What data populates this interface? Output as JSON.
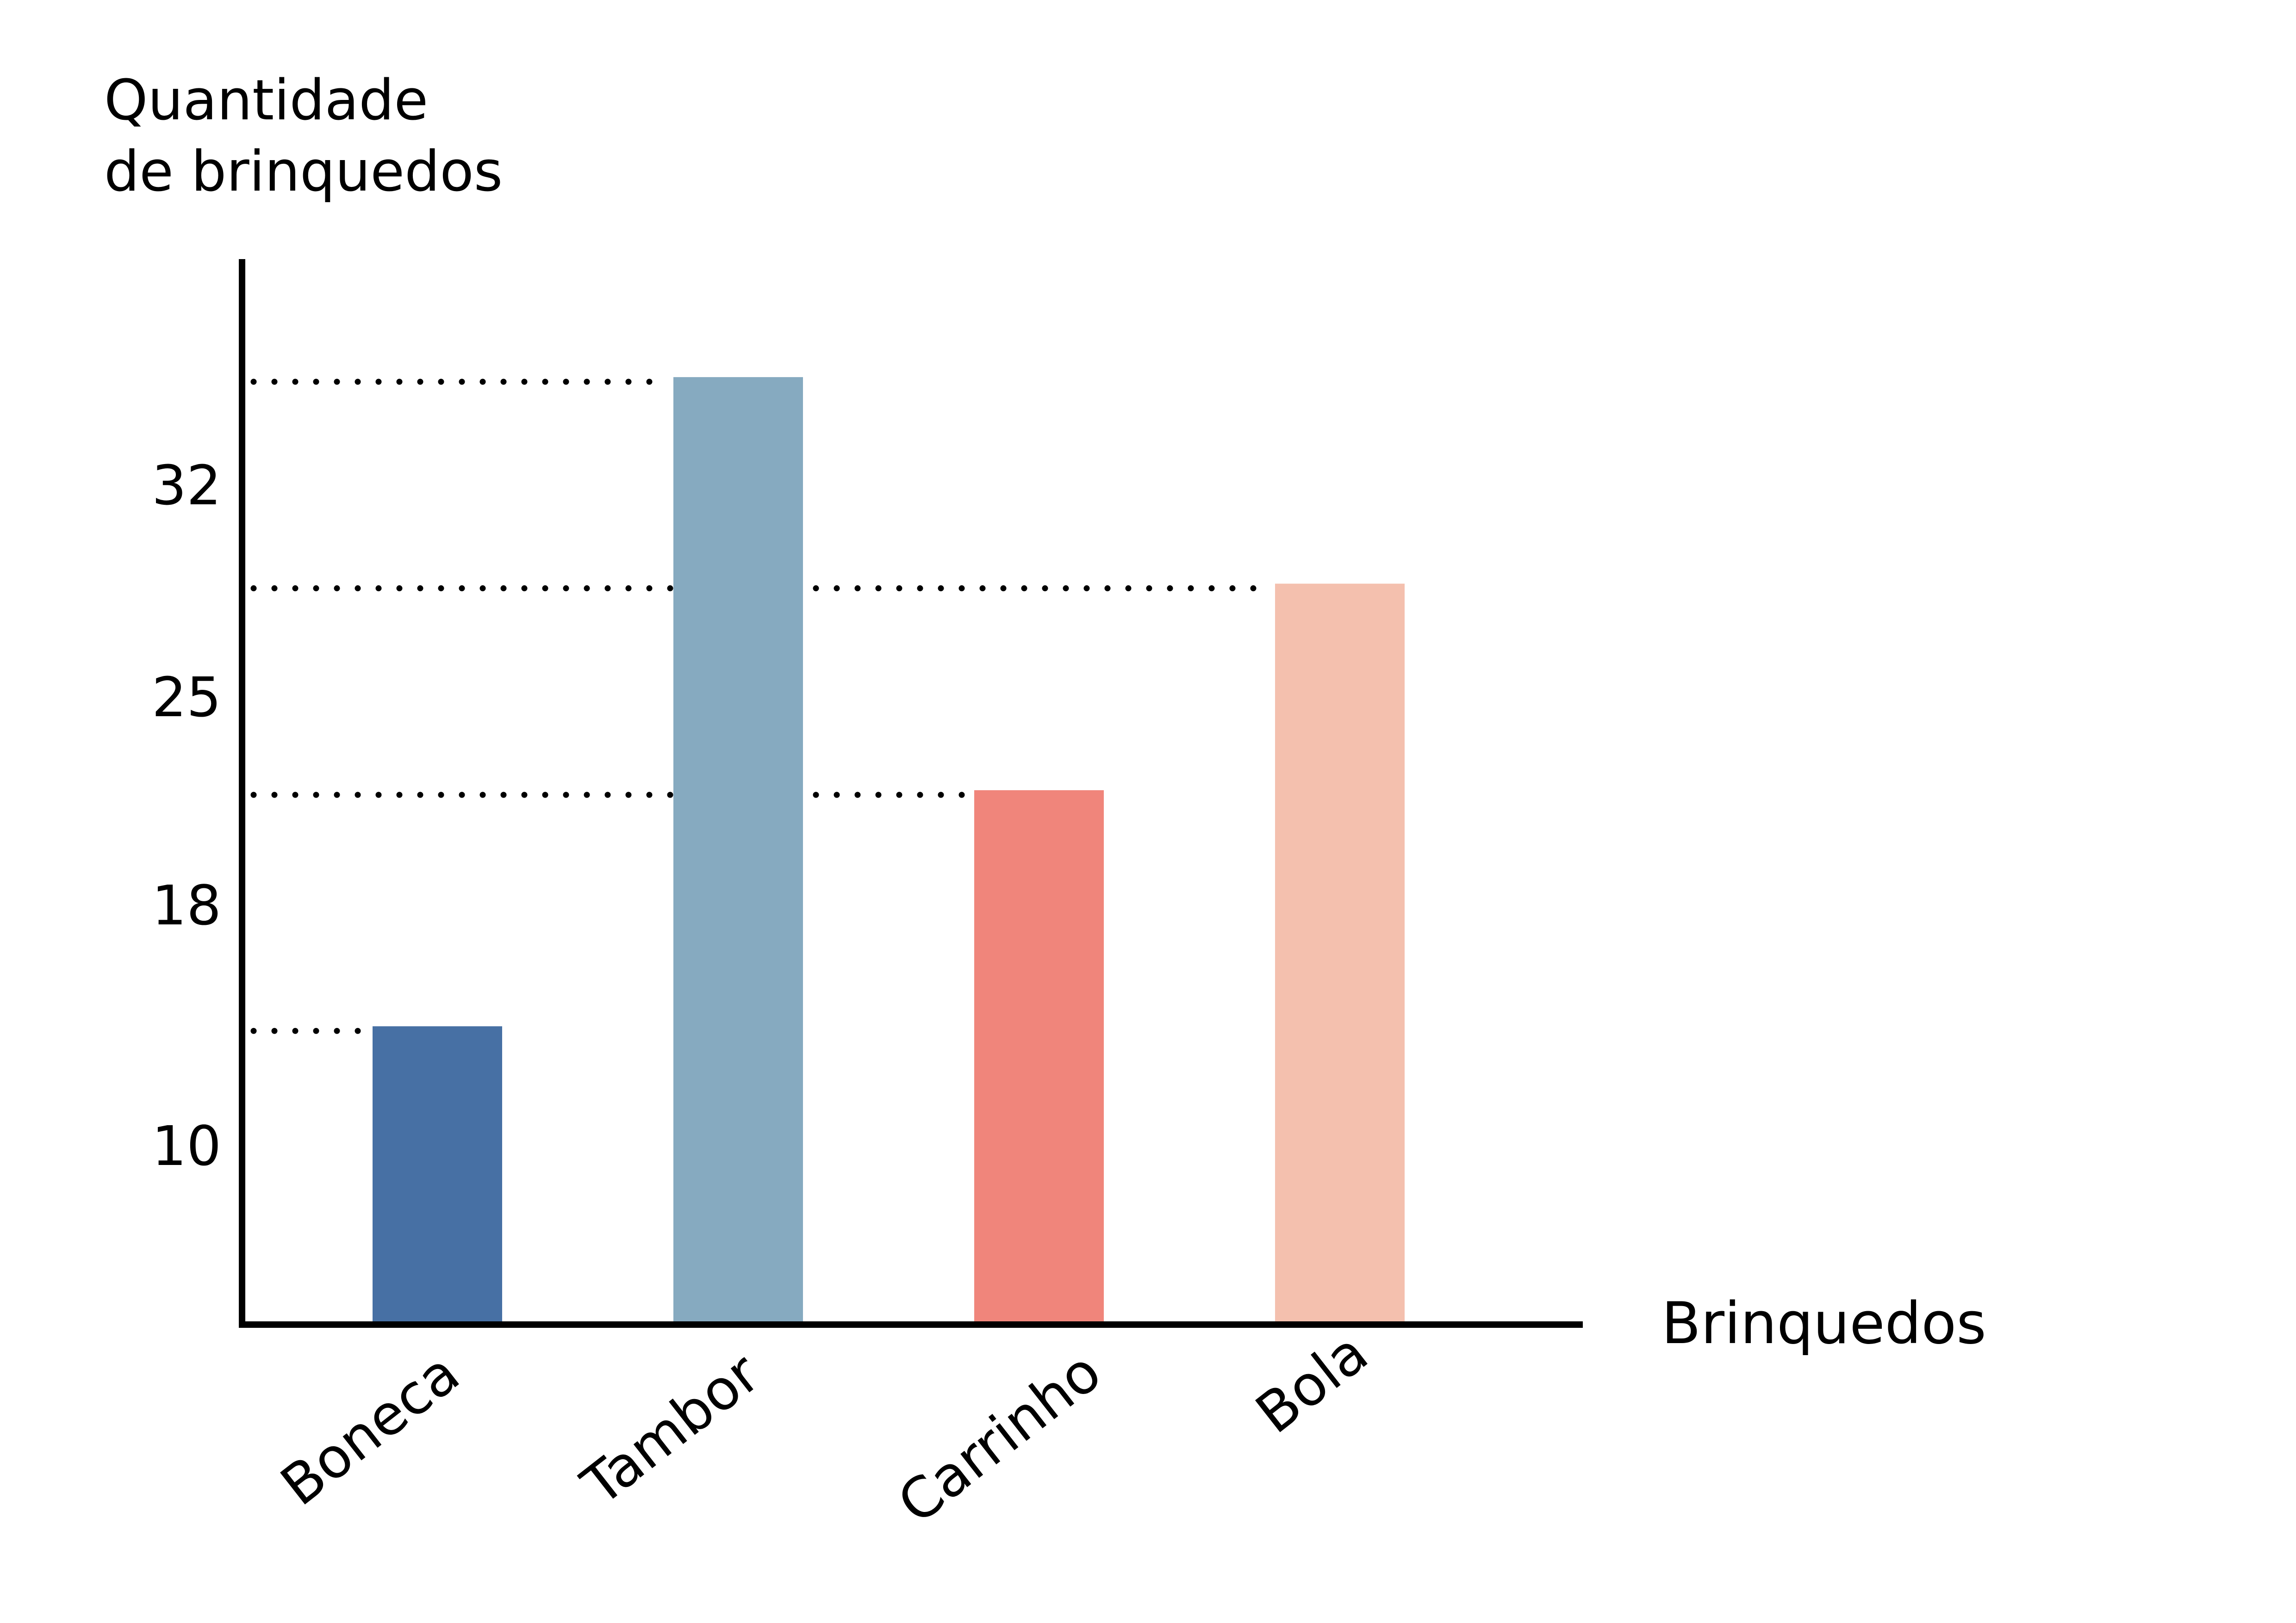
{
  "chart_data": {
    "type": "bar",
    "ylabel": [
      "Quantidade",
      "de brinquedos"
    ],
    "xlabel": "Brinquedos",
    "categories": [
      "Boneca",
      "Tambor",
      "Carrinho",
      "Bola"
    ],
    "values": [
      14,
      36,
      22,
      29
    ],
    "colors": [
      "#4770a4",
      "#86aac0",
      "#f0857b",
      "#f4c0ae"
    ],
    "yticks": [
      "10",
      "18",
      "25",
      "32"
    ],
    "ylim": [
      4,
      40
    ],
    "guide_lines": "dotted"
  }
}
